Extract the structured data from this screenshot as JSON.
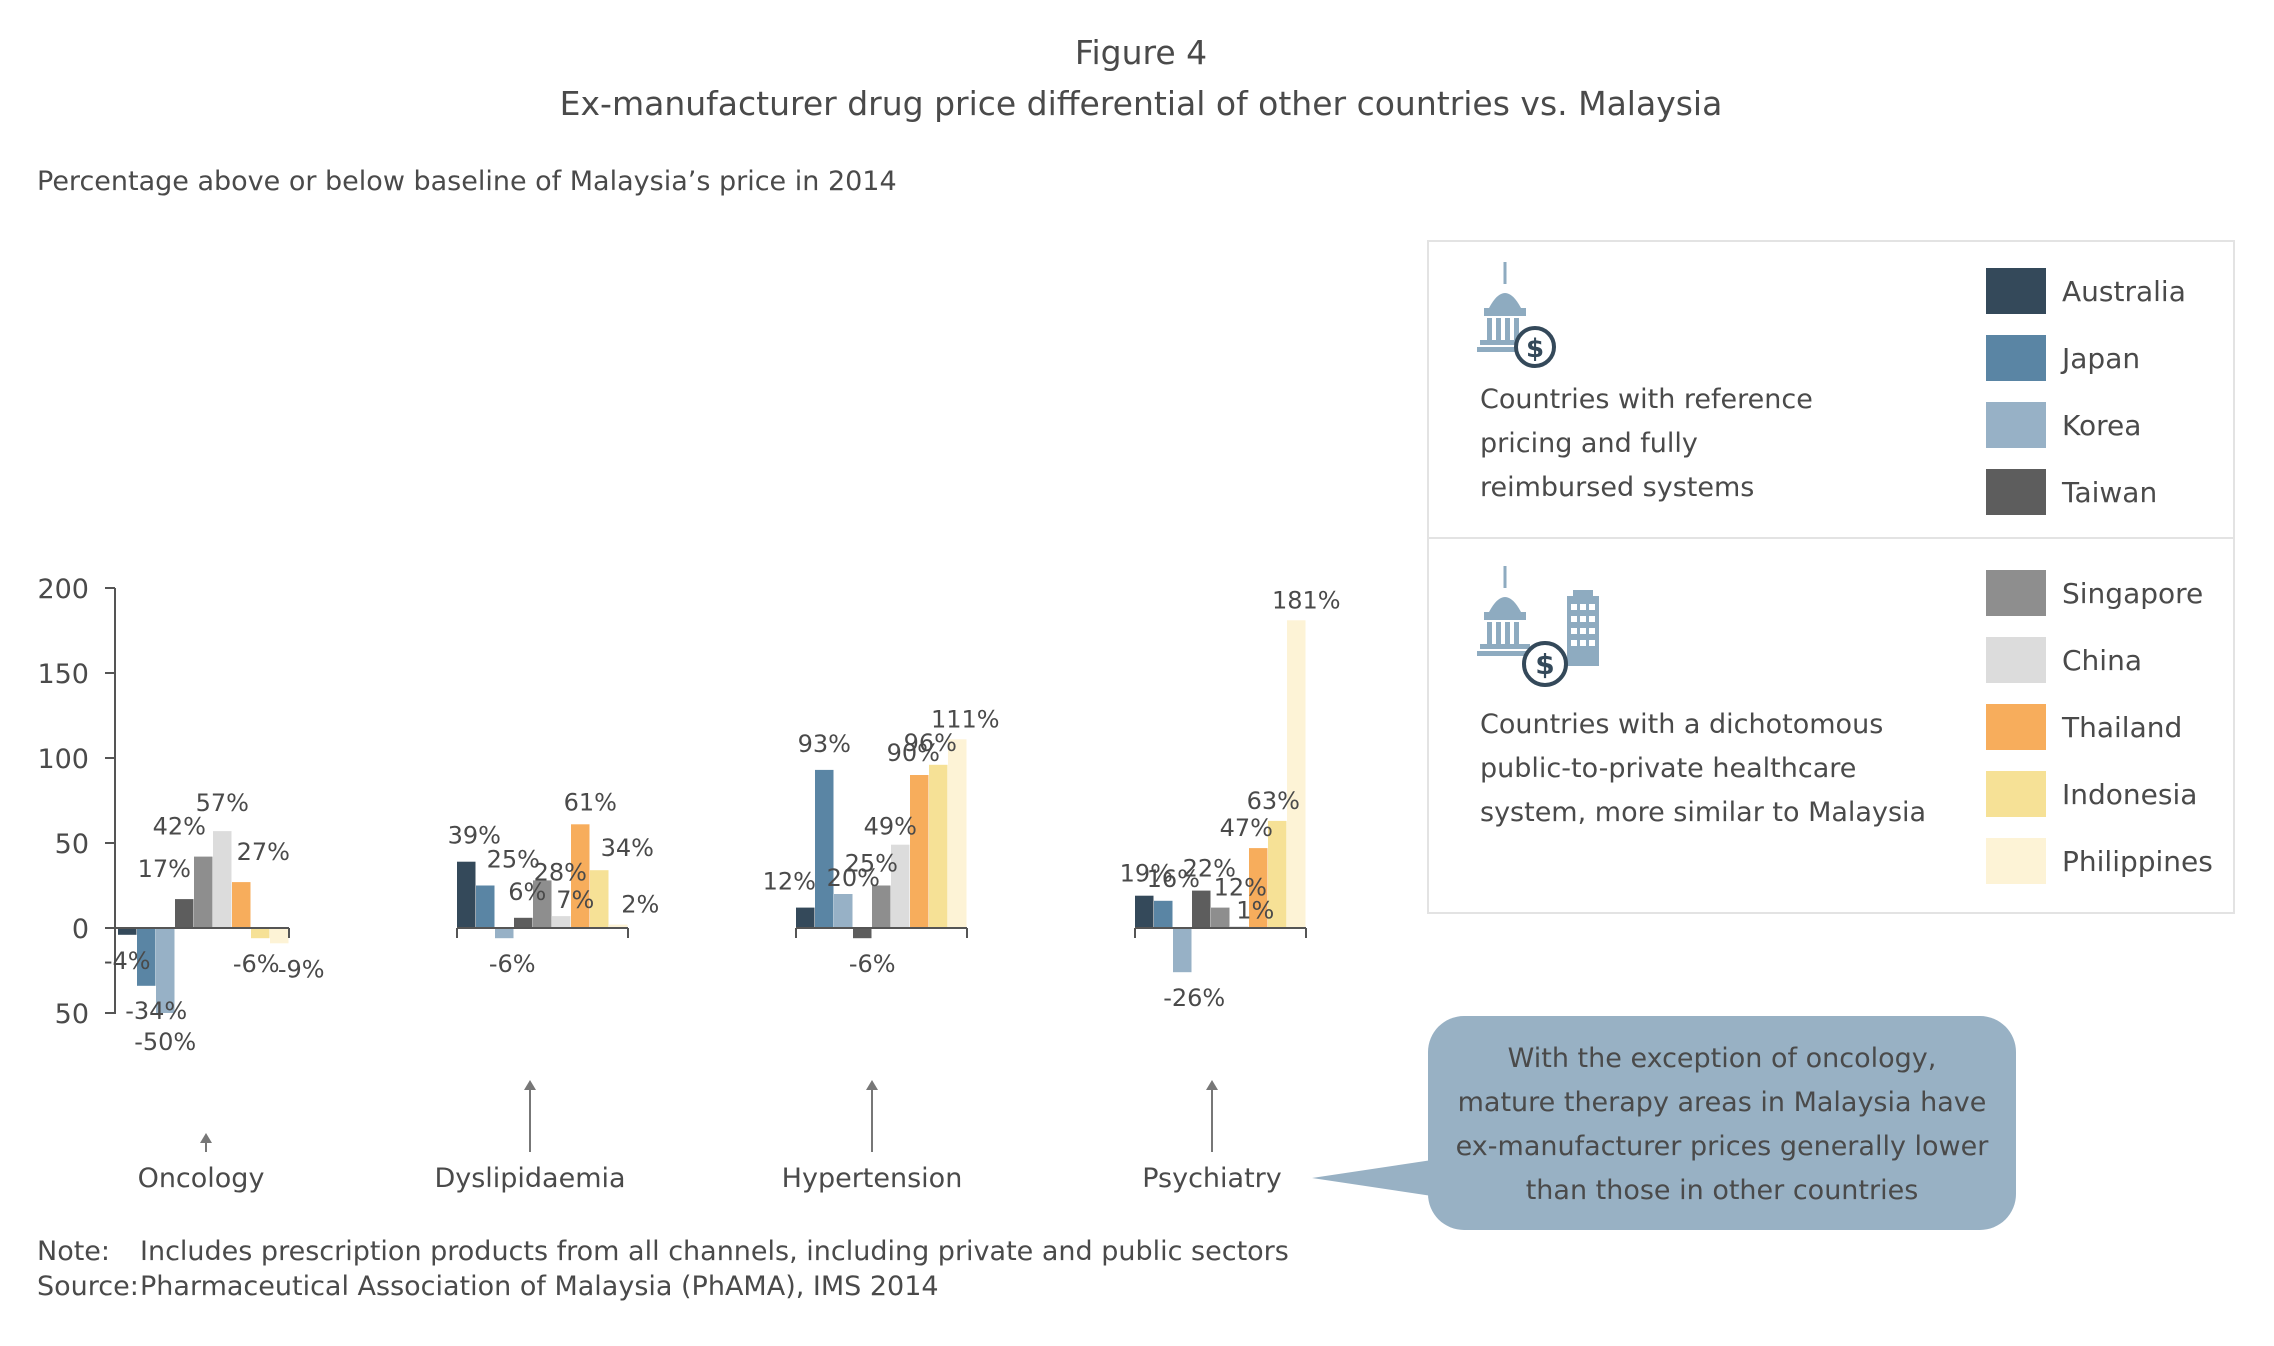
{
  "header": {
    "figure_label": "Figure 4",
    "title": "Ex-manufacturer drug price differential of other countries vs. Malaysia",
    "axis_note": "Percentage above or below baseline of Malaysia’s price in 2014"
  },
  "y_ticks": [
    {
      "value": 200,
      "label": "200"
    },
    {
      "value": 150,
      "label": "150"
    },
    {
      "value": 100,
      "label": "100"
    },
    {
      "value": 50,
      "label": "50"
    },
    {
      "value": 0,
      "label": "0"
    },
    {
      "value": -50,
      "label": "50"
    }
  ],
  "chart_data": {
    "type": "bar",
    "title": "Ex-manufacturer drug price differential of other countries vs. Malaysia",
    "ylabel": "Percentage above or below baseline of Malaysia’s price in 2014",
    "ylim": [
      -50,
      200
    ],
    "grid": false,
    "legend_placement": "right",
    "categories": [
      "Oncology",
      "Dyslipidaemia",
      "Hypertension",
      "Psychiatry"
    ],
    "series": [
      {
        "name": "Australia",
        "color": "#34495a",
        "values": [
          -4,
          39,
          12,
          19
        ],
        "labels": [
          "-4%",
          "39%",
          "12%",
          "19%"
        ]
      },
      {
        "name": "Japan",
        "color": "#5a85a4",
        "values": [
          -34,
          25,
          93,
          16
        ],
        "labels": [
          "-34%",
          "25%",
          "93%",
          "16%"
        ]
      },
      {
        "name": "Korea",
        "color": "#97b1c6",
        "values": [
          -50,
          -6,
          20,
          -26
        ],
        "labels": [
          "-50%",
          "-6%",
          "20%",
          "-26%"
        ]
      },
      {
        "name": "Taiwan",
        "color": "#5d5d5d",
        "values": [
          17,
          6,
          -6,
          22
        ],
        "labels": [
          "17%",
          "6%",
          "-6%",
          "22%"
        ]
      },
      {
        "name": "Singapore",
        "color": "#8e8e8e",
        "values": [
          42,
          28,
          25,
          12
        ],
        "labels": [
          "42%",
          "28%",
          "25%",
          "12%"
        ]
      },
      {
        "name": "China",
        "color": "#dcdcdc",
        "values": [
          57,
          7,
          49,
          1
        ],
        "labels": [
          "57%",
          "7%",
          "49%",
          "1%"
        ]
      },
      {
        "name": "Thailand",
        "color": "#f7ad5c",
        "values": [
          27,
          61,
          90,
          47
        ],
        "labels": [
          "27%",
          "61%",
          "90%",
          "47%"
        ]
      },
      {
        "name": "Indonesia",
        "color": "#f6e196",
        "values": [
          -6,
          34,
          96,
          63
        ],
        "labels": [
          "-6%",
          "34%",
          "96%",
          "63%"
        ]
      },
      {
        "name": "Philippines",
        "color": "#fdf3d6",
        "values": [
          -9,
          2,
          111,
          181
        ],
        "labels": [
          "-9%",
          "2%",
          "111%",
          "181%"
        ]
      }
    ]
  },
  "legend": {
    "group1": {
      "description": [
        "Countries with reference",
        "pricing and fully",
        "reimbursed systems"
      ],
      "icon": "government-building-dollar-icon"
    },
    "group2": {
      "description": [
        "Countries with a dichotomous",
        "public-to-private healthcare",
        "system, more similar to Malaysia"
      ],
      "icon": "government-and-private-building-dollar-icon"
    }
  },
  "callout": {
    "lines": [
      "With the exception of oncology,",
      "mature therapy areas in Malaysia have",
      "ex-manufacturer prices generally lower",
      "than those in other countries"
    ],
    "color": "#98b1c4"
  },
  "footer": {
    "note_label": "Note:",
    "note": "Includes prescription products from all channels, including private and public sectors",
    "source_label": "Source:",
    "source": "Pharmaceutical Association of Malaysia (PhAMA), IMS 2014"
  }
}
